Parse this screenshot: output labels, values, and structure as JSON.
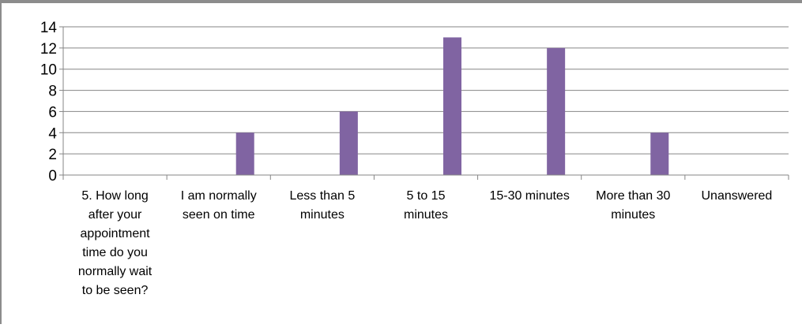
{
  "chart_data": {
    "type": "bar",
    "categories": [
      "5. How long after your appointment time do you normally wait to be seen?",
      "I am normally seen on time",
      "Less than 5 minutes",
      "5 to 15 minutes",
      "15-30 minutes",
      "More than 30 minutes",
      "Unanswered"
    ],
    "category_lines": [
      [
        "5. How long",
        "after your",
        "appointment",
        "time do you",
        "normally wait",
        "to be seen?"
      ],
      [
        "I am normally",
        "seen on time"
      ],
      [
        "Less than 5",
        "minutes"
      ],
      [
        "5 to 15",
        "minutes"
      ],
      [
        "15-30 minutes"
      ],
      [
        "More than 30",
        "minutes"
      ],
      [
        "Unanswered"
      ]
    ],
    "values": [
      0,
      4,
      6,
      13,
      12,
      4,
      0
    ],
    "ylim": [
      0,
      14
    ],
    "yticks": [
      0,
      2,
      4,
      6,
      8,
      10,
      12,
      14
    ],
    "grid": true,
    "bar_color": "#8064a2",
    "title": "",
    "xlabel": "",
    "ylabel": ""
  }
}
